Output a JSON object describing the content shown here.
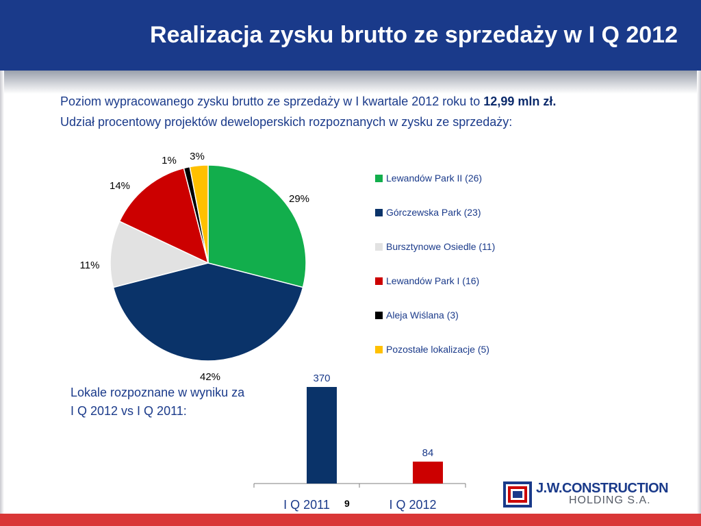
{
  "header": {
    "title": "Realizacja zysku brutto ze sprzedaży w I Q 2012"
  },
  "intro": {
    "line1_prefix": "Poziom wypracowanego zysku brutto ze sprzedaży w I kwartale 2012 roku to ",
    "line1_bold": "12,99 mln zł.",
    "line2": "Udział procentowy projektów deweloperskich rozpoznanych w zysku ze sprzedaży:"
  },
  "chart_data": [
    {
      "type": "pie",
      "slices": [
        {
          "label": "Lewandów Park II (26)",
          "value": 29,
          "display": "29%",
          "color": "#12ae4c"
        },
        {
          "label": "Górczewska Park (23)",
          "value": 42,
          "display": "42%",
          "color": "#0a3369"
        },
        {
          "label": "Bursztynowe Osiedle (11)",
          "value": 11,
          "display": "11%",
          "color": "#e2e2e2"
        },
        {
          "label": "Lewandów Park I (16)",
          "value": 14,
          "display": "14%",
          "color": "#cc0000"
        },
        {
          "label": "Aleja Wiślana (3)",
          "value": 1,
          "display": "1%",
          "color": "#000000"
        },
        {
          "label": "Pozostałe lokalizacje (5)",
          "value": 3,
          "display": "3%",
          "color": "#ffc000"
        }
      ],
      "legend": "right"
    },
    {
      "type": "bar",
      "categories": [
        "I Q 2011",
        "I Q 2012"
      ],
      "values": [
        370,
        84
      ],
      "colors": [
        "#0a3369",
        "#cc0000"
      ],
      "value_color": "#1a3a8a",
      "ylim": [
        0,
        400
      ]
    }
  ],
  "bar_caption": {
    "line1": "Lokale rozpoznane w wyniku za",
    "line2": "I Q 2012 vs I Q 2011:"
  },
  "footer": {
    "page_number": "9"
  },
  "logo": {
    "name": "J.W.CONSTRUCTION",
    "subtitle": "HOLDING S.A."
  }
}
